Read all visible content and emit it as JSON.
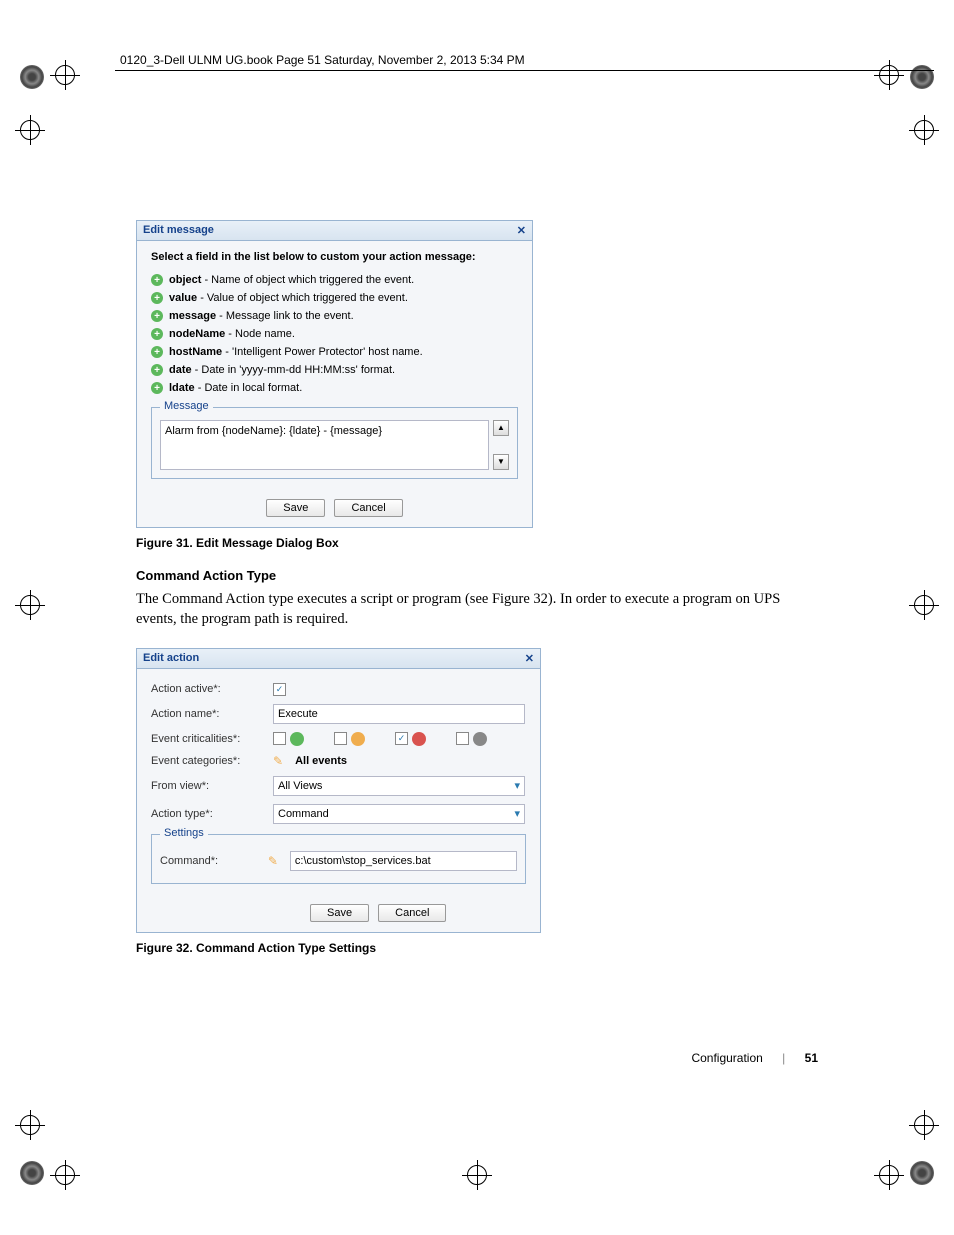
{
  "header": "0120_3-Dell ULNM UG.book  Page 51  Saturday, November 2, 2013  5:34 PM",
  "dialog1": {
    "title": "Edit message",
    "instruction": "Select a field in the list below to custom your action message:",
    "fields": [
      {
        "name": "object",
        "desc": " - Name of object which triggered the event."
      },
      {
        "name": "value",
        "desc": " - Value of object which triggered the event."
      },
      {
        "name": "message",
        "desc": " - Message link to the event."
      },
      {
        "name": "nodeName",
        "desc": " - Node name."
      },
      {
        "name": "hostName",
        "desc": " - 'Intelligent Power Protector' host name."
      },
      {
        "name": "date",
        "desc": " - Date in 'yyyy-mm-dd HH:MM:ss' format."
      },
      {
        "name": "ldate",
        "desc": " - Date in local format."
      }
    ],
    "msg_label": "Message",
    "msg_value": "Alarm from {nodeName}: {ldate} - {message}",
    "save": "Save",
    "cancel": "Cancel"
  },
  "caption1": "Figure 31.  Edit Message Dialog Box",
  "section": "Command Action Type",
  "para": "The Command Action type executes a script or program (see Figure 32). In order to execute a program on UPS events, the program path is required.",
  "dialog2": {
    "title": "Edit action",
    "labels": {
      "active": "Action active*:",
      "name": "Action name*:",
      "crit": "Event criticalities*:",
      "cat": "Event categories*:",
      "view": "From view*:",
      "type": "Action type*:",
      "cmd": "Command*:"
    },
    "name_val": "Execute",
    "cat_val": "All events",
    "view_val": "All Views",
    "type_val": "Command",
    "settings": "Settings",
    "cmd_val": "c:\\custom\\stop_services.bat",
    "save": "Save",
    "cancel": "Cancel"
  },
  "caption2": "Figure 32.  Command Action Type Settings",
  "footer": {
    "section": "Configuration",
    "page": "51"
  }
}
